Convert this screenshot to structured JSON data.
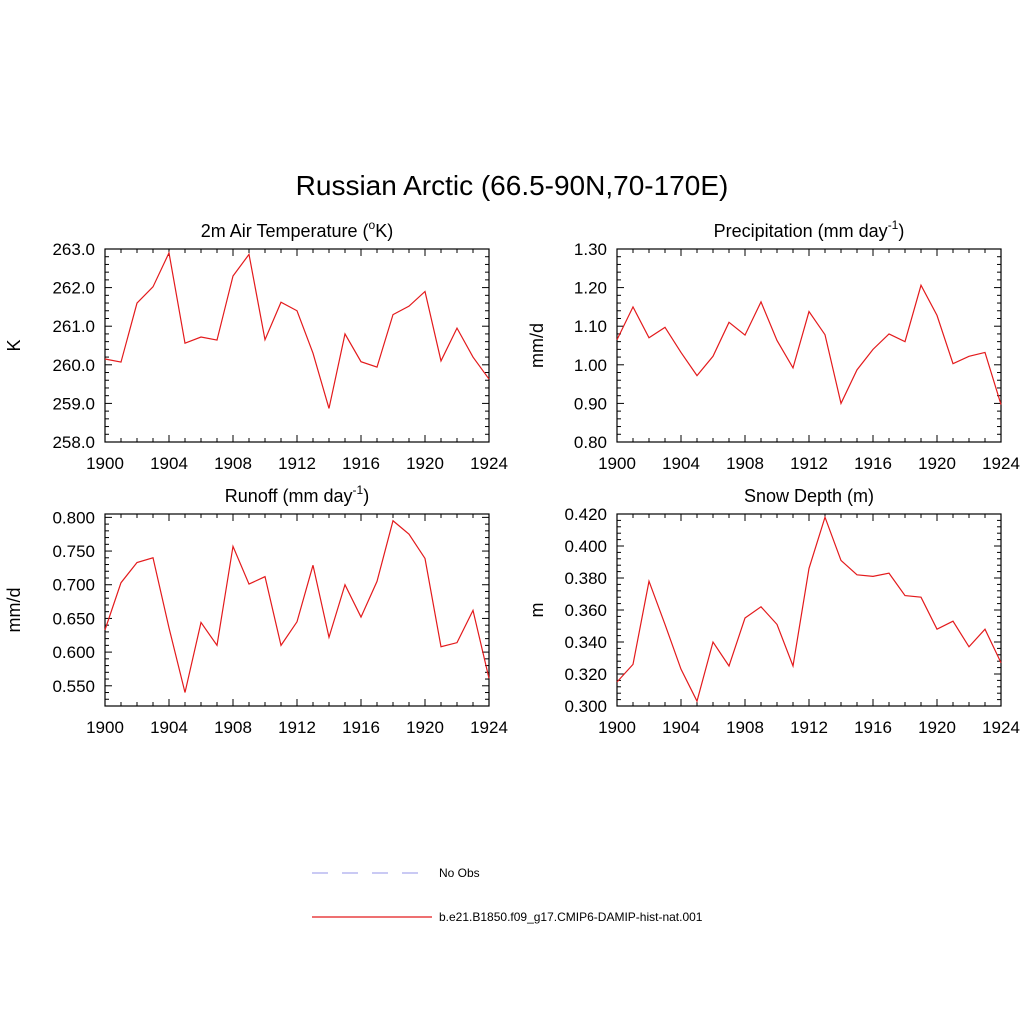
{
  "figure": {
    "title": "Russian Arctic (66.5-90N,70-170E)"
  },
  "legend": {
    "items": [
      {
        "label": "No Obs",
        "color": "#aaaaee",
        "dash": "dashed"
      },
      {
        "label": "b.e21.B1850.f09_g17.CMIP6-DAMIP-hist-nat.001",
        "color": "#e31a1c",
        "dash": "solid"
      }
    ]
  },
  "chart_data": [
    {
      "type": "line",
      "title_main": "2m Air Temperature (",
      "title_sup": "o",
      "title_end": "K)",
      "ylabel": "K",
      "xlim": [
        1900,
        1924
      ],
      "ylim": [
        258.0,
        263.0
      ],
      "xticks": [
        "1900",
        "1904",
        "1908",
        "1912",
        "1916",
        "1920",
        "1924"
      ],
      "yticks": [
        "258.0",
        "259.0",
        "260.0",
        "261.0",
        "262.0",
        "263.0"
      ],
      "series": [
        {
          "color": "#e31a1c",
          "x": [
            1900,
            1901,
            1902,
            1903,
            1904,
            1905,
            1906,
            1907,
            1908,
            1909,
            1910,
            1911,
            1912,
            1913,
            1914,
            1915,
            1916,
            1917,
            1918,
            1919,
            1920,
            1921,
            1922,
            1923,
            1924
          ],
          "y": [
            260.15,
            260.07,
            261.6,
            262.02,
            262.9,
            260.56,
            260.72,
            260.64,
            262.3,
            262.86,
            260.65,
            261.62,
            261.4,
            260.3,
            258.87,
            260.8,
            260.08,
            259.94,
            261.3,
            261.52,
            261.9,
            260.1,
            260.95,
            260.2,
            259.63
          ]
        }
      ]
    },
    {
      "type": "line",
      "title_main": "Precipitation (mm day",
      "title_sup": "-1",
      "title_end": ")",
      "ylabel": "mm/d",
      "xlim": [
        1900,
        1924
      ],
      "ylim": [
        0.8,
        1.3
      ],
      "xticks": [
        "1900",
        "1904",
        "1908",
        "1912",
        "1916",
        "1920",
        "1924"
      ],
      "yticks": [
        "0.80",
        "0.90",
        "1.00",
        "1.10",
        "1.20",
        "1.30"
      ],
      "series": [
        {
          "color": "#e31a1c",
          "x": [
            1900,
            1901,
            1902,
            1903,
            1904,
            1905,
            1906,
            1907,
            1908,
            1909,
            1910,
            1911,
            1912,
            1913,
            1914,
            1915,
            1916,
            1917,
            1918,
            1919,
            1920,
            1921,
            1922,
            1923,
            1924
          ],
          "y": [
            1.065,
            1.15,
            1.07,
            1.097,
            1.032,
            0.972,
            1.022,
            1.11,
            1.077,
            1.163,
            1.063,
            0.992,
            1.138,
            1.078,
            0.9,
            0.987,
            1.04,
            1.08,
            1.06,
            1.206,
            1.128,
            1.003,
            1.022,
            1.032,
            0.897
          ]
        }
      ]
    },
    {
      "type": "line",
      "title_main": "Runoff (mm day",
      "title_sup": "-1",
      "title_end": ")",
      "ylabel": "mm/d",
      "xlim": [
        1900,
        1924
      ],
      "ylim": [
        0.52,
        0.805
      ],
      "xticks": [
        "1900",
        "1904",
        "1908",
        "1912",
        "1916",
        "1920",
        "1924"
      ],
      "yticks": [
        "0.550",
        "0.600",
        "0.650",
        "0.700",
        "0.750",
        "0.800"
      ],
      "series": [
        {
          "color": "#e31a1c",
          "x": [
            1900,
            1901,
            1902,
            1903,
            1904,
            1905,
            1906,
            1907,
            1908,
            1909,
            1910,
            1911,
            1912,
            1913,
            1914,
            1915,
            1916,
            1917,
            1918,
            1919,
            1920,
            1921,
            1922,
            1923,
            1924
          ],
          "y": [
            0.633,
            0.703,
            0.733,
            0.74,
            0.636,
            0.54,
            0.644,
            0.61,
            0.757,
            0.701,
            0.712,
            0.61,
            0.645,
            0.729,
            0.622,
            0.7,
            0.652,
            0.705,
            0.795,
            0.775,
            0.739,
            0.608,
            0.614,
            0.662,
            0.561
          ]
        }
      ]
    },
    {
      "type": "line",
      "title_main": "Snow Depth (m)",
      "title_sup": "",
      "title_end": "",
      "ylabel": "m",
      "xlim": [
        1900,
        1924
      ],
      "ylim": [
        0.3,
        0.42
      ],
      "xticks": [
        "1900",
        "1904",
        "1908",
        "1912",
        "1916",
        "1920",
        "1924"
      ],
      "yticks": [
        "0.300",
        "0.320",
        "0.340",
        "0.360",
        "0.380",
        "0.400",
        "0.420"
      ],
      "series": [
        {
          "color": "#e31a1c",
          "x": [
            1900,
            1901,
            1902,
            1903,
            1904,
            1905,
            1906,
            1907,
            1908,
            1909,
            1910,
            1911,
            1912,
            1913,
            1914,
            1915,
            1916,
            1917,
            1918,
            1919,
            1920,
            1921,
            1922,
            1923,
            1924
          ],
          "y": [
            0.315,
            0.326,
            0.378,
            0.351,
            0.323,
            0.303,
            0.34,
            0.325,
            0.355,
            0.362,
            0.351,
            0.325,
            0.386,
            0.418,
            0.391,
            0.382,
            0.381,
            0.383,
            0.369,
            0.368,
            0.348,
            0.353,
            0.337,
            0.348,
            0.327
          ]
        }
      ]
    }
  ]
}
